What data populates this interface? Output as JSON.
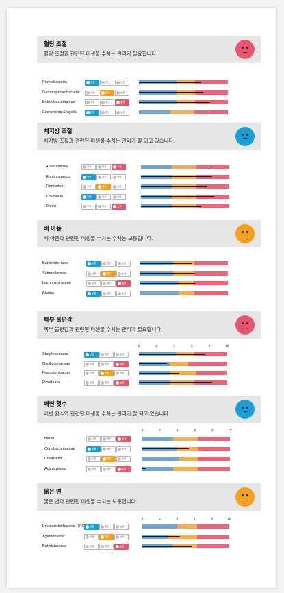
{
  "pill_labels": {
    "low": "낮음",
    "avg": "평균",
    "high": "높음"
  },
  "colors": {
    "low": "#199ed7",
    "avg": "#f5a01c",
    "high": "#e8566d",
    "face_bad": "#e8566d",
    "face_good": "#199ed7",
    "face_neutral": "#f5a01c"
  },
  "sections": [
    {
      "title": "혈당 조절",
      "desc": "혈당 조절과 관련된 미생물 수치는 관리가 필요합니다.",
      "face": "bad",
      "ticks": [],
      "rows": [
        {
          "name": "Proteobacteria",
          "state": "low",
          "value": 7.0,
          "bands": [
            4.2,
            6.3,
            10
          ]
        },
        {
          "name": "Gammaproteobacteria",
          "state": "avg",
          "value": 7.2,
          "bands": [
            4.2,
            6.3,
            10
          ]
        },
        {
          "name": "Enterobacteriaceae",
          "state": "high",
          "value": 8.0,
          "bands": [
            4.2,
            6.3,
            10
          ]
        },
        {
          "name": "Escherichia-Shigella",
          "state": "low",
          "value": 8.1,
          "bands": [
            3.5,
            6.2,
            10
          ]
        }
      ]
    },
    {
      "title": "체지방 조절",
      "desc": "체지방 조절과 관련된 미생물 수치는 관리가 잘 되고 있습니다.",
      "face": "good",
      "ticks": [],
      "rows": [
        {
          "name": "Anaerostipes",
          "state": "high",
          "value": 8.0,
          "bands": [
            3.5,
            6.3,
            10
          ]
        },
        {
          "name": "Ruminococcus",
          "state": "low",
          "value": 8.1,
          "bands": [
            3.5,
            6.3,
            10
          ]
        },
        {
          "name": "Firmicutes",
          "state": "avg",
          "value": 7.5,
          "bands": [
            3.5,
            6.3,
            10
          ]
        },
        {
          "name": "Collinsella",
          "state": "low",
          "value": 8.3,
          "bands": [
            3.5,
            6.3,
            10
          ]
        },
        {
          "name": "Dorea",
          "state": "high",
          "value": 6.8,
          "bands": [
            3.5,
            6.3,
            10
          ]
        }
      ]
    },
    {
      "title": "배 아픔",
      "desc": "배 아픔과 관련된 미생물 수치는 수치는 보통입니다.",
      "face": "neutral",
      "ticks": [],
      "rows": [
        {
          "name": "Burkholderiales",
          "state": "low",
          "value": 6.0,
          "bands": [
            3.8,
            6.2,
            10
          ]
        },
        {
          "name": "Sutterellaceae",
          "state": "avg",
          "value": 6.2,
          "bands": [
            3.8,
            6.2,
            10
          ]
        },
        {
          "name": "Lachnospiraceae",
          "state": "high",
          "value": 6.3,
          "bands": [
            4.4,
            6.2,
            10
          ]
        },
        {
          "name": "Blautia",
          "state": "low",
          "value": 4.7,
          "bands": [
            4.4,
            6.2,
            10
          ]
        }
      ]
    },
    {
      "title": "복부 불편감",
      "desc": "복부 불편감과 관련된 미생물 수치는 관리가 필요합니다.",
      "face": "bad",
      "ticks": [
        "0",
        "2",
        "4",
        "6",
        "8",
        "10"
      ],
      "rows": [
        {
          "name": "Streptococcace",
          "state": "low",
          "value": 7.5,
          "bands": [
            4.2,
            6.3,
            10
          ]
        },
        {
          "name": "Oscillospiraceae",
          "state": "high",
          "value": 3.2,
          "bands": [
            3.5,
            5.6,
            10
          ]
        },
        {
          "name": "Fusicatenibacter",
          "state": "avg",
          "value": 4.6,
          "bands": [
            3.6,
            6.5,
            10
          ]
        },
        {
          "name": "Roseburia",
          "state": "high",
          "value": 8.3,
          "bands": [
            3.5,
            6.3,
            10
          ]
        }
      ]
    },
    {
      "title": "배변 횟수",
      "desc": "배변 횟수와 관련된 미생물 수치는 관리가 잘 되고 있습니다.",
      "face": "good",
      "ticks": [
        "0",
        "2",
        "4",
        "6",
        "8",
        "10"
      ],
      "rows": [
        {
          "name": "Bacilli",
          "state": "high",
          "value": 8.5,
          "bands": [
            3.5,
            6.3,
            10
          ]
        },
        {
          "name": "Coriobacteriaceae",
          "state": "low",
          "value": 5.3,
          "bands": [
            3.9,
            6.3,
            10
          ]
        },
        {
          "name": "Collinsella",
          "state": "avg",
          "value": 4.6,
          "bands": [
            4.2,
            6.3,
            10
          ]
        },
        {
          "name": "Actinomyces",
          "state": "high",
          "value": 0.4,
          "bands": [
            3.5,
            6.3,
            10
          ]
        }
      ]
    },
    {
      "title": "묽은 변",
      "desc": "묽은 변과 관련된 미생물 수치는 보통입니다.",
      "face": "neutral",
      "ticks": [
        "0",
        "2",
        "4",
        "6",
        "8",
        "10"
      ],
      "rows": [
        {
          "name": "Erysipelotrichaceae UCG-003",
          "state": "low",
          "value": 5.0,
          "bands": [
            4.0,
            6.3,
            10
          ]
        },
        {
          "name": "Agathobacter",
          "state": "avg",
          "value": 4.3,
          "bands": [
            3.0,
            6.3,
            10
          ]
        },
        {
          "name": "Butyricicoccus",
          "state": "high",
          "value": 5.7,
          "bands": [
            3.5,
            6.3,
            10
          ]
        }
      ]
    }
  ]
}
